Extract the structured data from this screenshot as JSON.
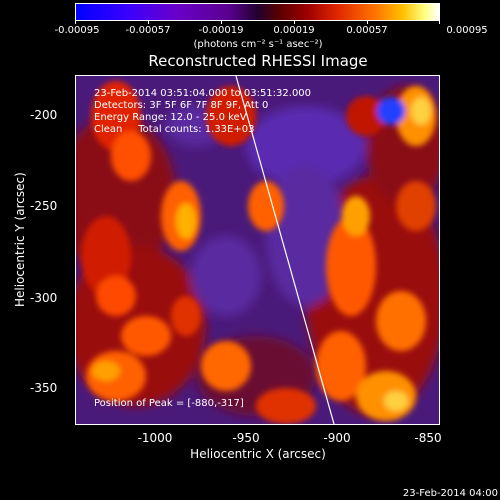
{
  "colorbar": {
    "ticks": [
      "-0.00095",
      "-0.00057",
      "-0.00019",
      "0.00019",
      "0.00057",
      "0.00095"
    ],
    "units": "(photons cm⁻² s⁻¹ asec⁻²)"
  },
  "title": "Reconstructed RHESSI Image",
  "info": {
    "time_range": "23-Feb-2014 03:51:04.000 to 03:51:32.000",
    "detectors": "Detectors: 3F 5F 6F 7F 8F 9F, Att 0",
    "energy": "Energy Range: 12.0 - 25.0 keV",
    "clean": "Clean     Total counts: 1.33E+03",
    "peak": "Position of Peak = [-880,-317]"
  },
  "axes": {
    "xlabel": "Heliocentric X (arcsec)",
    "ylabel": "Heliocentric Y (arcsec)",
    "xticks": [
      "-1000",
      "-950",
      "-900",
      "-850"
    ],
    "yticks": [
      "-200",
      "-250",
      "-300",
      "-350"
    ],
    "xlim": [
      -1045,
      -845
    ],
    "ylim": [
      -370,
      -176
    ]
  },
  "timestamp": "23-Feb-2014 04:00"
}
